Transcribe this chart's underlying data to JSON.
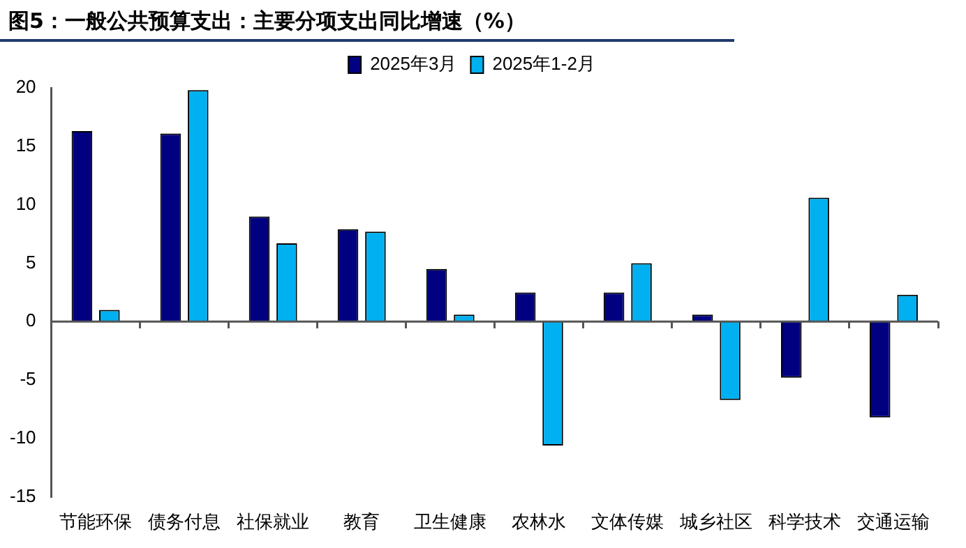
{
  "chart_data": {
    "type": "bar",
    "title": "图5：一般公共预算支出：主要分项支出同比增速（%）",
    "categories": [
      "节能环保",
      "债务付息",
      "社保就业",
      "教育",
      "卫生健康",
      "农林水",
      "文体传媒",
      "城乡社区",
      "科学技术",
      "交通运输"
    ],
    "series": [
      {
        "name": "2025年3月",
        "color": "#000080",
        "values": [
          16.3,
          16.1,
          9.0,
          7.9,
          4.5,
          2.5,
          2.5,
          0.6,
          -4.8,
          -8.2
        ]
      },
      {
        "name": "2025年1-2月",
        "color": "#00b0f0",
        "values": [
          1.0,
          19.8,
          6.7,
          7.7,
          0.6,
          -10.6,
          5.0,
          -6.7,
          10.6,
          2.3
        ]
      }
    ],
    "ylim": [
      -15,
      20
    ],
    "yticks": [
      -15,
      -10,
      -5,
      0,
      5,
      10,
      15,
      20
    ],
    "ref_lines": [
      {
        "axis": "y",
        "value": 0,
        "color": "#555555"
      }
    ],
    "grid": false,
    "legend": "top"
  }
}
